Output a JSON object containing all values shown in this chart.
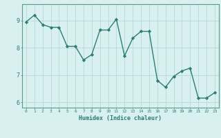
{
  "xlabel": "Humidex (Indice chaleur)",
  "ylabel": "",
  "x": [
    0,
    1,
    2,
    3,
    4,
    5,
    6,
    7,
    8,
    9,
    10,
    11,
    12,
    13,
    14,
    15,
    16,
    17,
    18,
    19,
    20,
    21,
    22,
    23
  ],
  "y": [
    8.95,
    9.2,
    8.85,
    8.75,
    8.75,
    8.05,
    8.05,
    7.55,
    7.75,
    8.65,
    8.65,
    9.05,
    7.7,
    8.35,
    8.6,
    8.6,
    6.8,
    6.55,
    6.95,
    7.15,
    7.25,
    6.15,
    6.15,
    6.35
  ],
  "line_color": "#2e7d6e",
  "marker": "D",
  "marker_size": 2.2,
  "line_width": 1.0,
  "bg_color": "#d8f0f0",
  "grid_color": "#b8d8d8",
  "spine_color": "#5a9a8a",
  "tick_color": "#2e7d6e",
  "label_color": "#2e7d6e",
  "xlim": [
    -0.5,
    23.5
  ],
  "ylim": [
    5.8,
    9.6
  ],
  "yticks": [
    6,
    7,
    8,
    9
  ],
  "xticks": [
    0,
    1,
    2,
    3,
    4,
    5,
    6,
    7,
    8,
    9,
    10,
    11,
    12,
    13,
    14,
    15,
    16,
    17,
    18,
    19,
    20,
    21,
    22,
    23
  ]
}
